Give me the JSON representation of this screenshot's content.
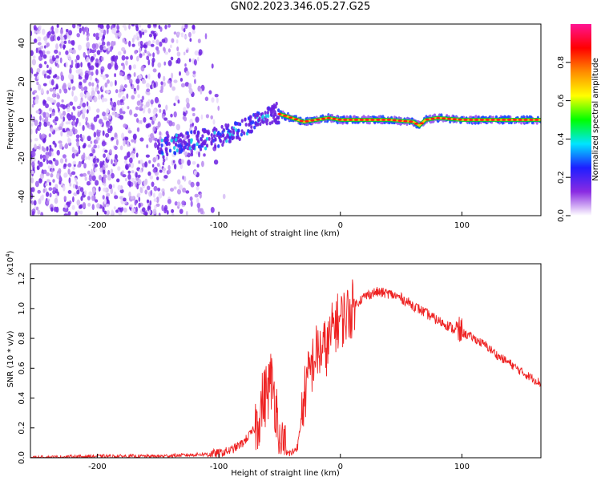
{
  "title": "GN02.2023.346.05.27.G25",
  "chart_data": [
    {
      "type": "heatmap",
      "xlabel": "Height of straight line (km)",
      "ylabel": "Frequency (Hz)",
      "xlim": [
        -255,
        165
      ],
      "ylim": [
        -50,
        50
      ],
      "xticks": [
        -200,
        -100,
        0,
        100
      ],
      "yticks": [
        -40,
        -20,
        0,
        20,
        40
      ],
      "grid": false,
      "colorbar": {
        "label": "Normalized spectral amplitude",
        "range": [
          0,
          1
        ],
        "ticks": [
          "0.0",
          "0.2",
          "0.4",
          "0.6",
          "0.8"
        ],
        "colormap": [
          "#ffffff",
          "#8a2be2",
          "#1e1eff",
          "#00e5ff",
          "#00ff00",
          "#ffff00",
          "#ff8c00",
          "#ff0000",
          "#ff1493"
        ]
      },
      "ridge": {
        "x": [
          -150,
          -140,
          -130,
          -120,
          -110,
          -100,
          -90,
          -80,
          -70,
          -60,
          -55,
          -50,
          -40,
          -30,
          -20,
          -10,
          0,
          20,
          40,
          60,
          65,
          70,
          80,
          100,
          120,
          140,
          165
        ],
        "y": [
          -16,
          -13,
          -12,
          -11,
          -10,
          -9,
          -7,
          -5,
          -2,
          2,
          4,
          3,
          1,
          -1,
          0,
          1,
          0,
          0,
          0,
          -1,
          -3,
          0,
          1,
          0,
          0,
          0,
          0
        ]
      }
    },
    {
      "type": "line",
      "xlabel": "Height of straight line (km)",
      "ylabel": "SNR (10 * v/v)",
      "y_multiplier": "(x10",
      "y_multiplier_exp": "4",
      "y_multiplier_close": ")",
      "xlim": [
        -255,
        165
      ],
      "ylim": [
        0,
        1.3
      ],
      "xticks": [
        -200,
        -100,
        0,
        100
      ],
      "yticks": [
        "0.0",
        "0.2",
        "0.4",
        "0.6",
        "0.8",
        "1.0",
        "1.2"
      ],
      "grid": false,
      "color": "#ee2222",
      "series": [
        {
          "x": [
            -255,
            -200,
            -150,
            -120,
            -100,
            -90,
            -80,
            -70,
            -65,
            -60,
            -57,
            -55,
            -52,
            -50,
            -45,
            -40,
            -35,
            -30,
            -25,
            -20,
            -15,
            -10,
            -5,
            0,
            5,
            10,
            15,
            20,
            25,
            30,
            40,
            50,
            60,
            70,
            80,
            90,
            95,
            100,
            110,
            120,
            130,
            140,
            150,
            165
          ],
          "y": [
            0.0,
            0.01,
            0.01,
            0.02,
            0.03,
            0.05,
            0.1,
            0.2,
            0.35,
            0.45,
            0.52,
            0.45,
            0.3,
            0.05,
            0.03,
            0.03,
            0.08,
            0.4,
            0.58,
            0.7,
            0.72,
            0.75,
            0.9,
            0.92,
            0.96,
            1.0,
            1.05,
            1.08,
            1.1,
            1.11,
            1.1,
            1.07,
            1.02,
            0.97,
            0.92,
            0.88,
            0.85,
            0.84,
            0.8,
            0.75,
            0.68,
            0.63,
            0.57,
            0.5
          ]
        }
      ]
    }
  ]
}
